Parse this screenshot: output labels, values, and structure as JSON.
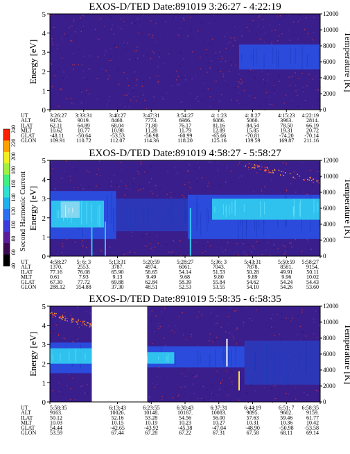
{
  "colors": {
    "background_field": "#3a1e8c",
    "noise_red": "#b0304a",
    "band_blue": "#2a4ee0",
    "band_cyan": "#30c8ee",
    "band_light": "#88d8f0",
    "gap": "#ffffff",
    "spike": "#ffe040"
  },
  "colorbar": {
    "label": "Second Harmonic Current",
    "ticks": [
      "40",
      "60",
      "80",
      "100",
      "120",
      "140",
      "160",
      "180",
      "200",
      "220",
      "240"
    ],
    "stops": [
      "#000000",
      "#3a0a50",
      "#5a1c9a",
      "#3c3cdc",
      "#2a70f0",
      "#20b0f0",
      "#30e0d0",
      "#40f080",
      "#a0f040",
      "#f0f020",
      "#ffa000",
      "#ff2000"
    ]
  },
  "chart_data": [
    {
      "type": "heatmap",
      "title": "EXOS-D/TED   Date:891019  3:26:27 - 4:22:19",
      "ylabel": "Energy [eV]",
      "y2label": "Temperature [K]",
      "ylim": [
        0,
        5
      ],
      "y2lim": [
        0,
        12000
      ],
      "yticks": [
        "0",
        "1",
        "2",
        "3",
        "4",
        "5"
      ],
      "y2ticks": [
        "0",
        "2000",
        "4000",
        "6000",
        "8000",
        "10000",
        "12000"
      ],
      "gaps": [],
      "bands": [
        {
          "x0": 0.7,
          "x1": 1.0,
          "e0": 2.1,
          "e1": 3.4,
          "level": "blue"
        }
      ],
      "spikes": [],
      "dots": [],
      "table_rows": [
        "UT",
        "ALT",
        "ILAT",
        "MLT",
        "GLAT",
        "GLON"
      ],
      "table": [
        [
          "3:26:27",
          "3:33:31",
          "3:40:27",
          "3:47:31",
          "3:54:27",
          "4: 1:23",
          "4: 8:27",
          "4:15:23",
          "4:22:19"
        ],
        [
          "9474.",
          "9019.",
          "8460.",
          "7773.",
          "6986.",
          "6086.",
          "5060.",
          "3963.",
          "2814."
        ],
        [
          "62.11",
          "64.89",
          "68.04",
          "71.80",
          "76.17",
          "81.16",
          "84.54",
          "78.50",
          "66.19"
        ],
        [
          "10.62",
          "10.77",
          "10.98",
          "11.28",
          "11.79",
          "12.89",
          "15.85",
          "19.31",
          "20.72"
        ],
        [
          "-48.11",
          "-50.64",
          "-53.53",
          "-56.98",
          "-60.99",
          "-65.66",
          "-70.81",
          "-74.20",
          "-70.14"
        ],
        [
          "109.91",
          "110.72",
          "112.07",
          "114.36",
          "118.20",
          "125.16",
          "139.59",
          "169.87",
          "211.16"
        ]
      ]
    },
    {
      "type": "heatmap",
      "title": "EXOS-D/TED   Date:891019  4:58:27 - 5:58:27",
      "ylabel": "Energy [eV]",
      "y2label": "Temperature [K]",
      "ylim": [
        0,
        5
      ],
      "y2lim": [
        0,
        12000
      ],
      "yticks": [
        "0",
        "1",
        "2",
        "3",
        "4",
        "5"
      ],
      "y2ticks": [
        "0",
        "2000",
        "4000",
        "6000",
        "8000",
        "10000",
        "12000"
      ],
      "gaps": [],
      "bands": [
        {
          "x0": 0.0,
          "x1": 0.245,
          "e0": 0.9,
          "e1": 3.4,
          "level": "blue"
        },
        {
          "x0": 0.005,
          "x1": 0.2,
          "e0": 1.5,
          "e1": 2.9,
          "level": "cyan"
        },
        {
          "x0": 0.04,
          "x1": 0.11,
          "e0": 2.0,
          "e1": 2.85,
          "level": "light"
        },
        {
          "x0": 0.245,
          "x1": 0.51,
          "e0": 1.3,
          "e1": 3.0,
          "level": "faint"
        },
        {
          "x0": 0.51,
          "x1": 1.0,
          "e0": 0.9,
          "e1": 3.2,
          "level": "blue"
        },
        {
          "x0": 0.6,
          "x1": 1.0,
          "e0": 1.9,
          "e1": 3.0,
          "level": "cyan"
        }
      ],
      "spikes": [
        {
          "x": 0.155,
          "e0": 0.0,
          "e1": 1.8,
          "level": "cyan"
        },
        {
          "x": 0.205,
          "e0": 0.0,
          "e1": 1.8,
          "level": "cyan"
        },
        {
          "x": 0.52,
          "e0": 0.0,
          "e1": 2.5,
          "level": "cyan"
        }
      ],
      "dots": [
        {
          "x0": 0.72,
          "x1": 1.0,
          "e0": 4.8,
          "e1": 3.9
        }
      ],
      "table_rows": [
        "UT",
        "ALT",
        "ILAT",
        "MLT",
        "GLAT",
        "GLON"
      ],
      "table": [
        [
          "4:58:27",
          "5: 6: 3",
          "5:13:31",
          "5:20:59",
          "5:28:27",
          "5:36: 3",
          "5:43:31",
          "5:50:59",
          "5:58:27"
        ],
        [
          "1370.",
          "2553.",
          "3787.",
          "4974.",
          "6061.",
          "7043.",
          "7878.",
          "8581.",
          "9154."
        ],
        [
          "77.16",
          "76.08",
          "65.90",
          "58.65",
          "54.14",
          "51.53",
          "50.28",
          "49.91",
          "50.11"
        ],
        [
          "0.61",
          "7.93",
          "9.13",
          "9.49",
          "9.68",
          "9.80",
          "9.89",
          "9.96",
          "10.02"
        ],
        [
          "67.30",
          "77.72",
          "69.88",
          "62.84",
          "58.39",
          "55.84",
          "54.62",
          "54.24",
          "54.43"
        ],
        [
          "288.12",
          "354.88",
          "37.30",
          "48.51",
          "52.53",
          "53.55",
          "54.10",
          "54.26",
          "53.60"
        ]
      ]
    },
    {
      "type": "heatmap",
      "title": "EXOS-D/TED   Date:891019  5:58:35 - 6:58:35",
      "ylabel": "Energy [eV]",
      "y2label": "Temperature [K]",
      "ylim": [
        0,
        5
      ],
      "y2lim": [
        0,
        12000
      ],
      "yticks": [
        "0",
        "1",
        "2",
        "3",
        "4",
        "5"
      ],
      "y2ticks": [
        "0",
        "2000",
        "4000",
        "6000",
        "8000",
        "10000",
        "12000"
      ],
      "gaps": [
        {
          "x0": 0.155,
          "x1": 0.36
        }
      ],
      "bands": [
        {
          "x0": 0.0,
          "x1": 0.155,
          "e0": 1.5,
          "e1": 3.1,
          "level": "blue"
        },
        {
          "x0": 0.0,
          "x1": 0.155,
          "e0": 2.0,
          "e1": 2.8,
          "level": "cyan"
        },
        {
          "x0": 0.36,
          "x1": 0.72,
          "e0": 1.8,
          "e1": 2.9,
          "level": "blue"
        },
        {
          "x0": 0.36,
          "x1": 0.46,
          "e0": 2.0,
          "e1": 2.6,
          "level": "cyan"
        },
        {
          "x0": 0.72,
          "x1": 1.0,
          "e0": 0.9,
          "e1": 3.2,
          "level": "faint"
        }
      ],
      "spikes": [
        {
          "x": 0.655,
          "e0": 1.85,
          "e1": 3.3,
          "level": "white"
        },
        {
          "x": 0.7,
          "e0": 0.6,
          "e1": 1.6,
          "level": "yellow"
        }
      ],
      "dots": [
        {
          "x0": 0.0,
          "x1": 0.155,
          "e0": 4.6,
          "e1": 4.0
        }
      ],
      "table_rows": [
        "UT",
        "ALT",
        "ILAT",
        "MLT",
        "GLAT",
        "GLON"
      ],
      "table": [
        [
          "5:58:35",
          "",
          "6:13:43",
          "6:23:55",
          "6:30:43",
          "6:37:31",
          "6:44:19",
          "6:51: 7",
          "6:58:35"
        ],
        [
          "9163.",
          "",
          "10026.",
          "10148.",
          "10167.",
          "10083.",
          "9895.",
          "9602.",
          "9159."
        ],
        [
          "50.12",
          "",
          "52.16",
          "53.28",
          "54.56",
          "56.00",
          "57.63",
          "59.46",
          "61.77"
        ],
        [
          "10.03",
          "",
          "10.15",
          "10.19",
          "10.23",
          "10.27",
          "10.31",
          "10.36",
          "10.42"
        ],
        [
          "54.44",
          "",
          "-42.65",
          "-43.92",
          "-45.38",
          "-47.04",
          "-48.90",
          "-50.98",
          "-53.58"
        ],
        [
          "53.59",
          "",
          "67.44",
          "67.28",
          "67.22",
          "67.31",
          "67.58",
          "68.11",
          "69.14"
        ]
      ]
    }
  ]
}
